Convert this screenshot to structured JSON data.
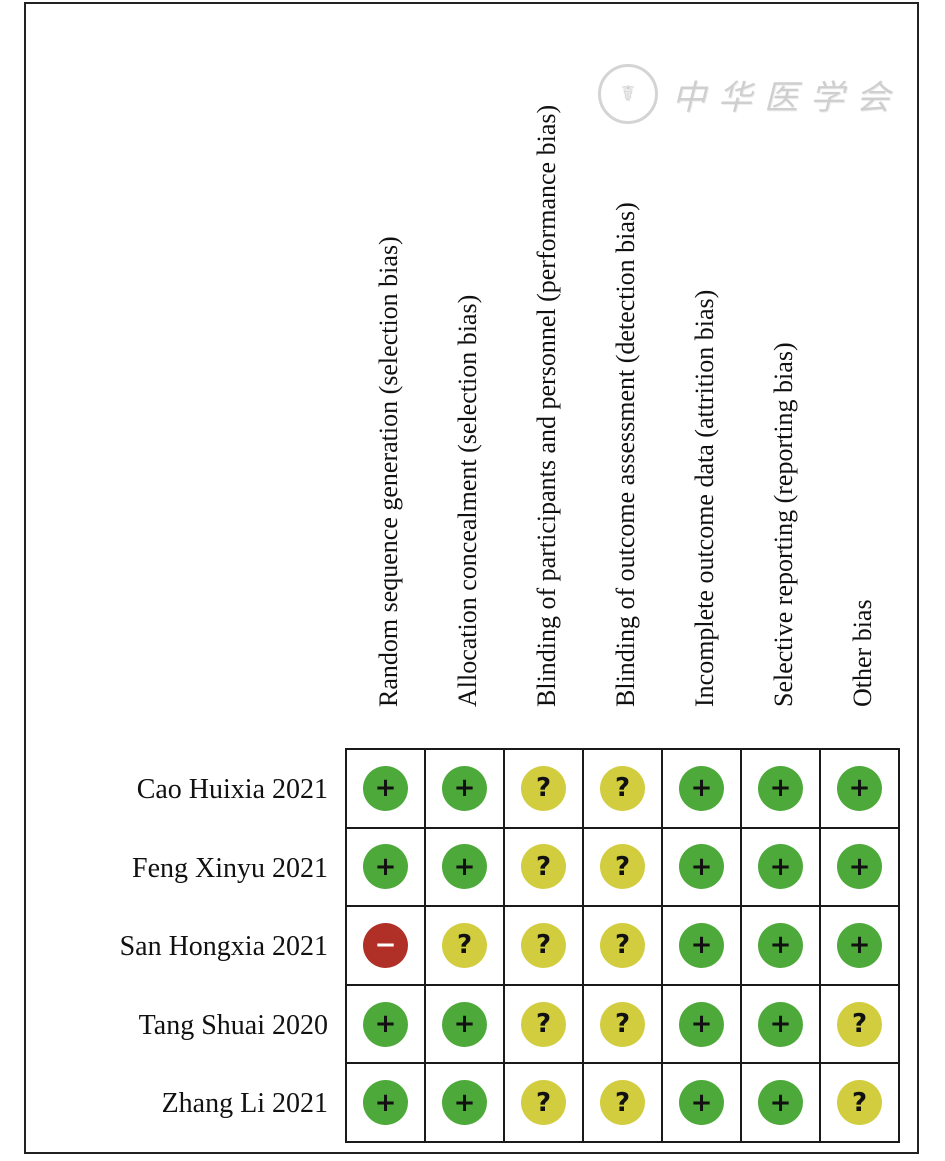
{
  "watermark": {
    "text": "中华医学会"
  },
  "colors": {
    "low": "#4ea93b",
    "unclear": "#d1cd3f",
    "high": "#b03028"
  },
  "symbols": {
    "low": "+",
    "unclear": "?",
    "high": "−"
  },
  "chart_data": {
    "type": "table",
    "columns": [
      "Random sequence generation (selection bias)",
      "Allocation concealment (selection bias)",
      "Blinding of participants and personnel (performance bias)",
      "Blinding of outcome assessment (detection bias)",
      "Incomplete outcome data (attrition bias)",
      "Selective reporting (reporting bias)",
      "Other bias"
    ],
    "rows": [
      {
        "study": "Cao Huixia 2021",
        "values": [
          "low",
          "low",
          "unclear",
          "unclear",
          "low",
          "low",
          "low"
        ]
      },
      {
        "study": "Feng Xinyu 2021",
        "values": [
          "low",
          "low",
          "unclear",
          "unclear",
          "low",
          "low",
          "low"
        ]
      },
      {
        "study": "San Hongxia 2021",
        "values": [
          "high",
          "unclear",
          "unclear",
          "unclear",
          "low",
          "low",
          "low"
        ]
      },
      {
        "study": "Tang Shuai 2020",
        "values": [
          "low",
          "low",
          "unclear",
          "unclear",
          "low",
          "low",
          "unclear"
        ]
      },
      {
        "study": "Zhang Li 2021",
        "values": [
          "low",
          "low",
          "unclear",
          "unclear",
          "low",
          "low",
          "unclear"
        ]
      }
    ]
  }
}
